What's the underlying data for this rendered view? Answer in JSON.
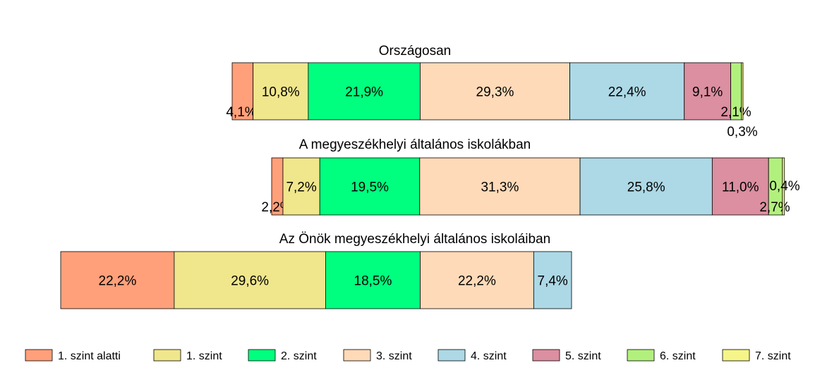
{
  "chart_data": {
    "type": "bar",
    "orientation": "horizontal-stacked",
    "legend_position": "bottom",
    "grid": false,
    "levels": [
      {
        "name": "1. szint alatti",
        "color": "#FFA07A"
      },
      {
        "name": "1. szint",
        "color": "#F0E68C"
      },
      {
        "name": "2. szint",
        "color": "#00FF7F"
      },
      {
        "name": "3. szint",
        "color": "#FFDAB9"
      },
      {
        "name": "4. szint",
        "color": "#ADD8E6"
      },
      {
        "name": "5. szint",
        "color": "#DB8FA0"
      },
      {
        "name": "6. szint",
        "color": "#B2F07E"
      },
      {
        "name": "7. szint",
        "color": "#F5F589"
      }
    ],
    "bars": [
      {
        "title": "Országosan",
        "values": [
          4.1,
          10.8,
          21.9,
          29.3,
          22.4,
          9.1,
          2.1,
          0.3
        ],
        "labels": [
          "4,1%",
          "10,8%",
          "21,9%",
          "29,3%",
          "22,4%",
          "9,1%",
          "2,1%",
          "0,3%"
        ]
      },
      {
        "title": "A megyeszékhelyi általános iskolákban",
        "values": [
          2.2,
          7.2,
          19.5,
          31.3,
          25.8,
          11.0,
          2.7,
          0.4
        ],
        "labels": [
          "2,2%",
          "7,2%",
          "19,5%",
          "31,3%",
          "25,8%",
          "11,0%",
          "2,7%",
          "0,4%"
        ]
      },
      {
        "title": "Az Önök megyeszékhelyi általános iskoláiban",
        "values": [
          22.2,
          29.6,
          18.5,
          22.2,
          7.4
        ],
        "labels": [
          "22,2%",
          "29,6%",
          "18,5%",
          "22,2%",
          "7,4%"
        ]
      }
    ]
  }
}
